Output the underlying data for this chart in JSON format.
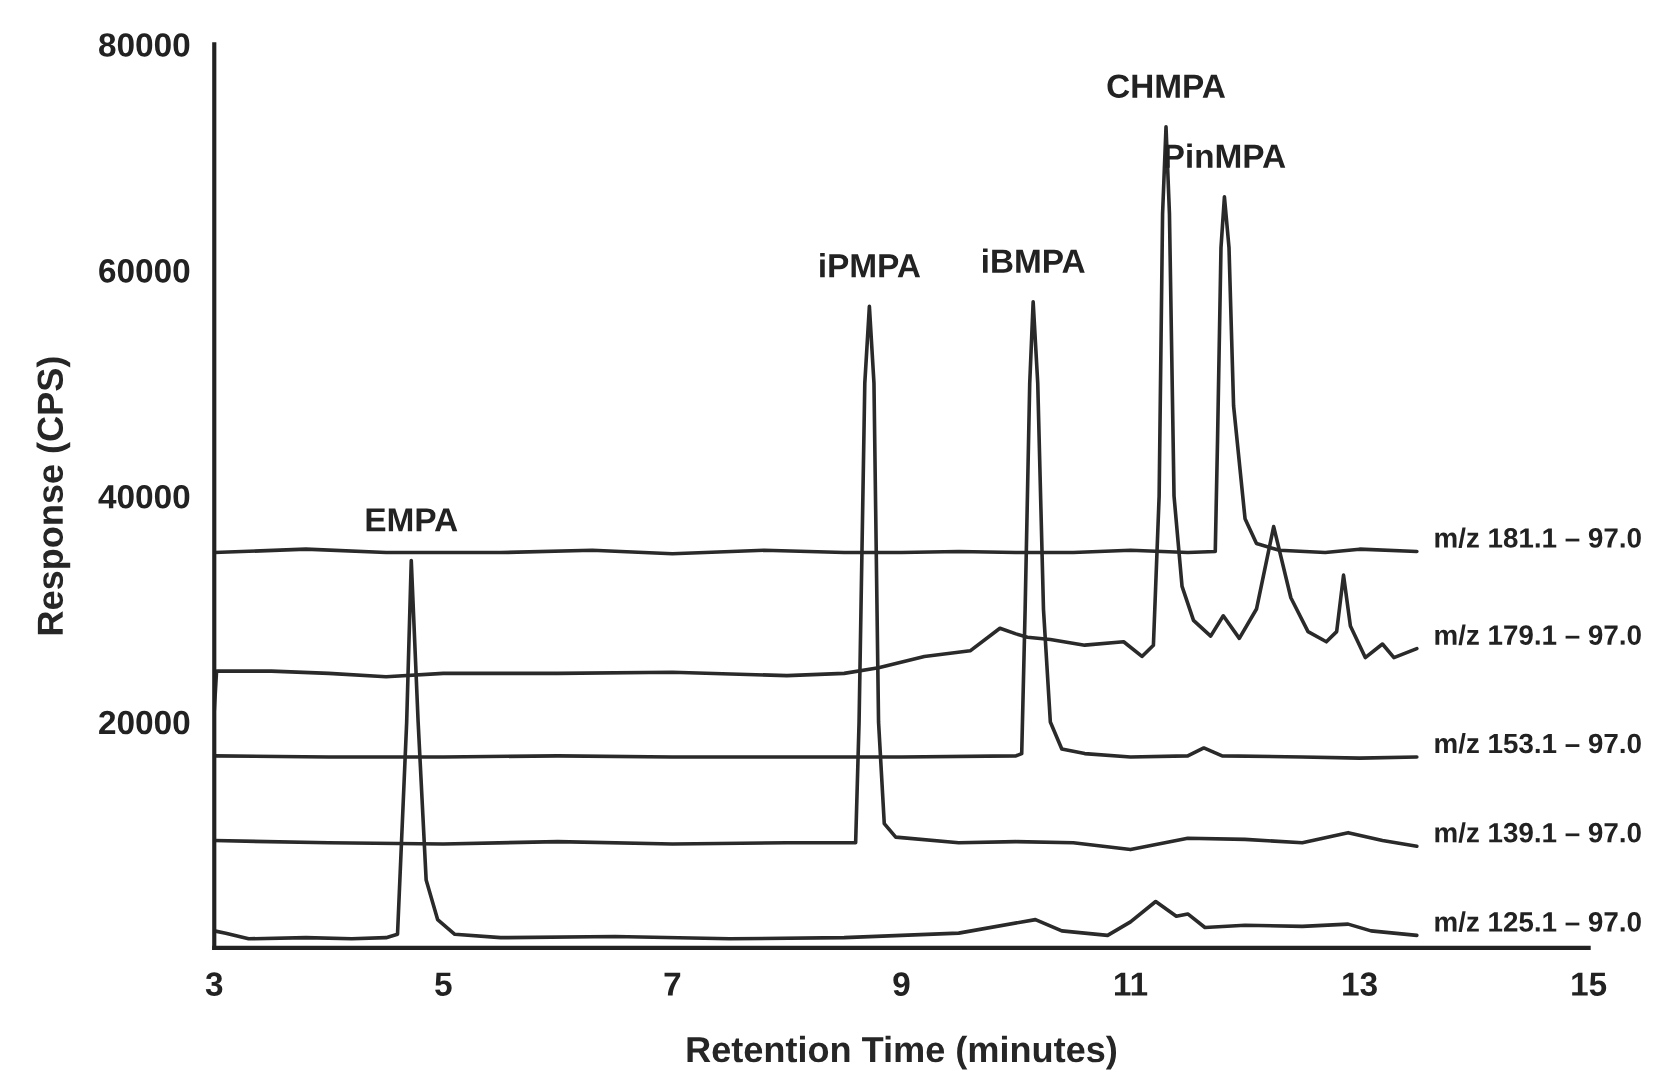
{
  "chart_data": {
    "type": "line",
    "xlabel": "Retention Time (minutes)",
    "ylabel": "Response (CPS)",
    "xlim": [
      3,
      15
    ],
    "ylim": [
      0,
      80000
    ],
    "xticks": [
      3,
      5,
      7,
      9,
      11,
      13,
      15
    ],
    "yticks": [
      20000,
      40000,
      60000,
      80000
    ],
    "series": [
      {
        "name": "m/z 181.1 – 97.0",
        "color": "#2a2a2a",
        "x": [
          3.0,
          3.8,
          4.5,
          5.5,
          6.3,
          7.0,
          7.8,
          8.5,
          9.0,
          9.5,
          10.0,
          10.5,
          11.0,
          11.5,
          11.74,
          11.76,
          11.79,
          11.82,
          11.86,
          11.9,
          12.0,
          12.1,
          12.3,
          12.7,
          13.0,
          13.5
        ],
        "values": [
          35000,
          35300,
          35000,
          35000,
          35200,
          34900,
          35200,
          35000,
          35000,
          35100,
          35000,
          35000,
          35200,
          35000,
          35100,
          45000,
          62000,
          66500,
          62000,
          48000,
          38000,
          35800,
          35200,
          35000,
          35300,
          35100
        ]
      },
      {
        "name": "m/z 179.1 – 97.0",
        "color": "#2a2a2a",
        "x": [
          3.0,
          3.02,
          3.5,
          4.0,
          4.5,
          5.0,
          6.0,
          7.0,
          8.0,
          8.5,
          8.8,
          9.2,
          9.6,
          9.86,
          10.0,
          10.1,
          10.3,
          10.6,
          10.94,
          11.1,
          11.2,
          11.25,
          11.28,
          11.31,
          11.34,
          11.38,
          11.45,
          11.55,
          11.7,
          11.81,
          11.95,
          12.1,
          12.25,
          12.4,
          12.55,
          12.71,
          12.8,
          12.86,
          12.92,
          13.05,
          13.2,
          13.3,
          13.5
        ],
        "values": [
          21000,
          24500,
          24500,
          24300,
          24000,
          24300,
          24300,
          24400,
          24100,
          24300,
          24800,
          25800,
          26300,
          28300,
          27800,
          27500,
          27300,
          26800,
          27100,
          25800,
          26800,
          40000,
          65000,
          72700,
          65000,
          40000,
          32000,
          29000,
          27600,
          29400,
          27400,
          30000,
          37300,
          31000,
          28000,
          27100,
          28000,
          33000,
          28500,
          25700,
          26900,
          25700,
          26500
        ]
      },
      {
        "name": "m/z 153.1 – 97.0",
        "color": "#2a2a2a",
        "x": [
          3.0,
          4.0,
          5.0,
          6.0,
          7.0,
          8.0,
          9.0,
          10.0,
          10.05,
          10.08,
          10.12,
          10.15,
          10.19,
          10.24,
          10.3,
          10.4,
          10.6,
          11.0,
          11.5,
          11.64,
          11.8,
          12.5,
          13.0,
          13.5
        ],
        "values": [
          17000,
          16900,
          16900,
          17000,
          16900,
          16900,
          16900,
          17000,
          17200,
          30000,
          50000,
          57200,
          50000,
          30000,
          20000,
          17600,
          17200,
          16900,
          17000,
          17700,
          17000,
          16900,
          16800,
          16900
        ]
      },
      {
        "name": "m/z 139.1 – 97.0",
        "color": "#2a2a2a",
        "x": [
          3.0,
          4.0,
          5.0,
          6.0,
          7.0,
          8.0,
          8.6,
          8.63,
          8.68,
          8.72,
          8.76,
          8.8,
          8.85,
          8.95,
          9.5,
          10.0,
          10.5,
          11.0,
          11.5,
          12.0,
          12.5,
          12.9,
          13.2,
          13.5
        ],
        "values": [
          9500,
          9300,
          9200,
          9400,
          9200,
          9300,
          9300,
          20000,
          50000,
          56800,
          50000,
          20000,
          11000,
          9800,
          9300,
          9400,
          9300,
          8700,
          9700,
          9600,
          9300,
          10200,
          9500,
          9000
        ]
      },
      {
        "name": "m/z 125.1 – 97.0",
        "color": "#2a2a2a",
        "x": [
          3.0,
          3.1,
          3.3,
          3.8,
          4.2,
          4.5,
          4.6,
          4.68,
          4.72,
          4.78,
          4.85,
          4.95,
          5.1,
          5.5,
          6.5,
          7.5,
          8.5,
          9.5,
          10.17,
          10.4,
          10.8,
          11.0,
          11.22,
          11.4,
          11.5,
          11.65,
          12.0,
          12.5,
          12.9,
          13.1,
          13.5
        ],
        "values": [
          1500,
          1300,
          800,
          900,
          800,
          900,
          1200,
          20000,
          34300,
          20000,
          6000,
          2500,
          1200,
          900,
          1000,
          800,
          900,
          1300,
          2500,
          1500,
          1100,
          2300,
          4100,
          2800,
          3000,
          1800,
          2000,
          1900,
          2100,
          1500,
          1100
        ]
      }
    ],
    "annotations": [
      {
        "text": "EMPA",
        "x": 4.72,
        "y": 34300
      },
      {
        "text": "iPMPA",
        "x": 8.72,
        "y": 56800
      },
      {
        "text": "iBMPA",
        "x": 10.15,
        "y": 57200
      },
      {
        "text": "CHMPA",
        "x": 11.31,
        "y": 72700
      },
      {
        "text": "PinMPA",
        "x": 11.82,
        "y": 66500
      }
    ]
  }
}
